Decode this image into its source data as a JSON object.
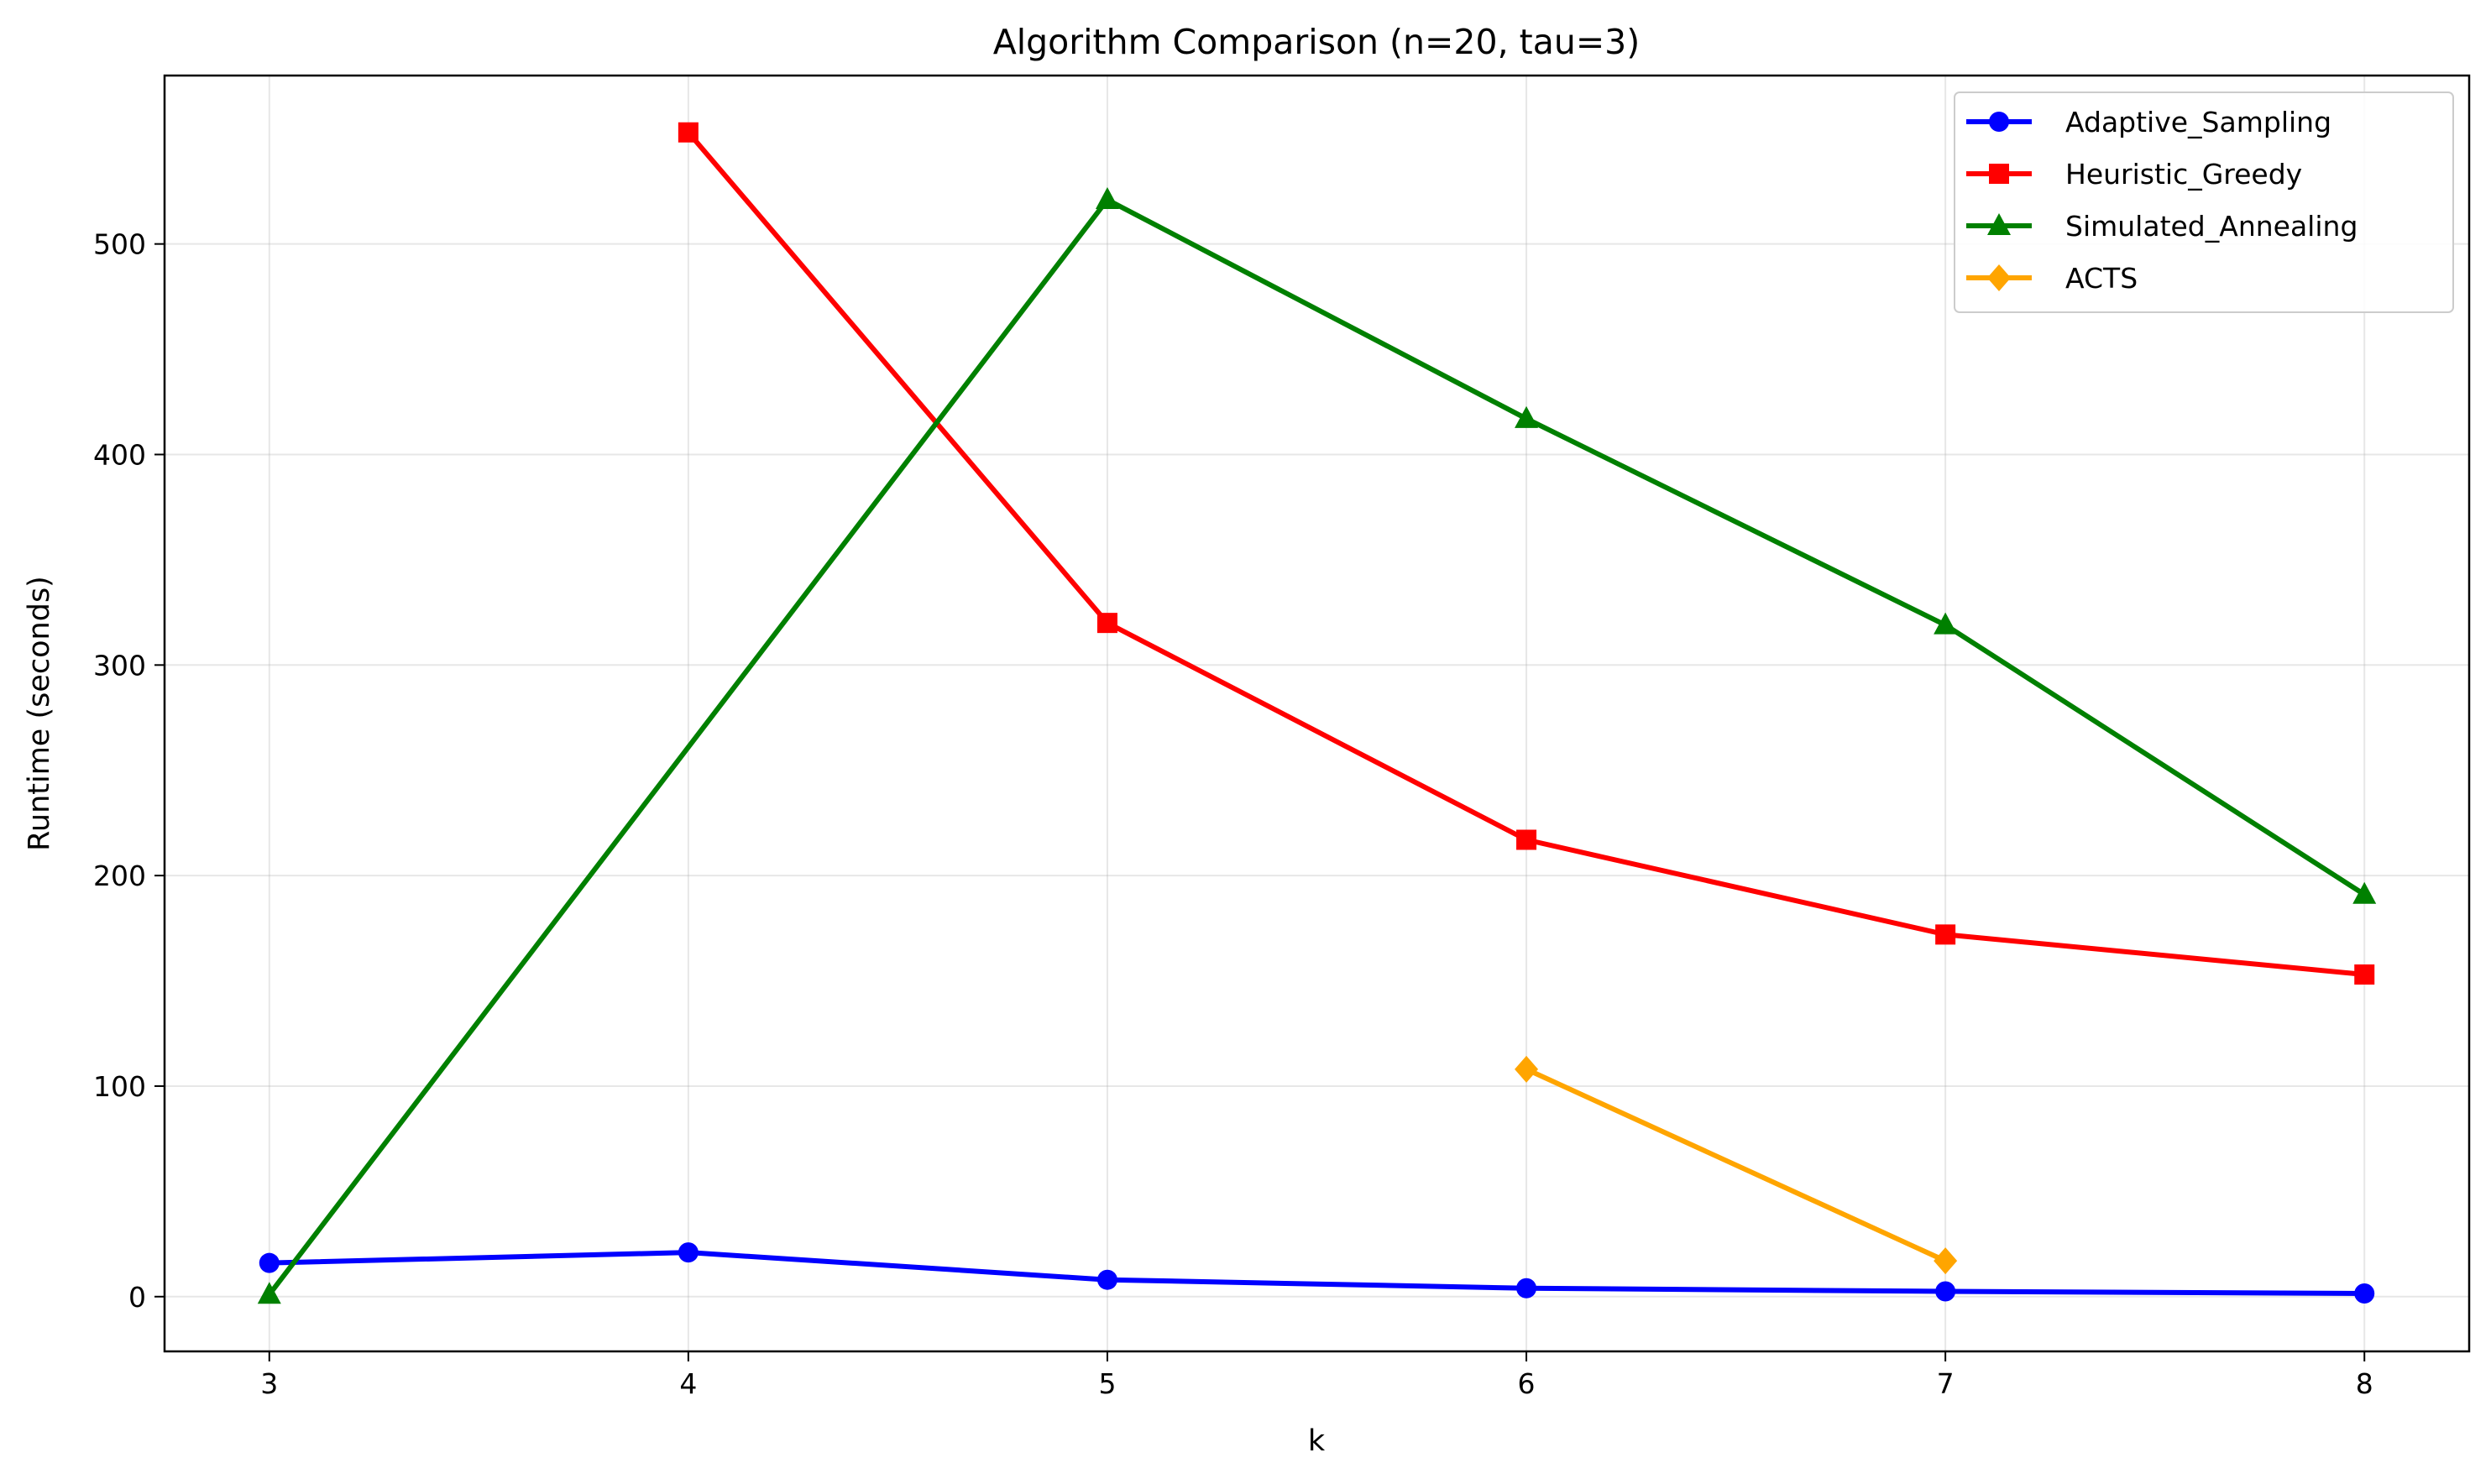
{
  "chart_data": {
    "type": "line",
    "title": "Algorithm Comparison (n=20, tau=3)",
    "xlabel": "k",
    "ylabel": "Runtime (seconds)",
    "x": [
      3,
      4,
      5,
      6,
      7,
      8
    ],
    "xlim": [
      2.75,
      8.25
    ],
    "ylim": [
      -26,
      580
    ],
    "xticks": [
      "3",
      "4",
      "5",
      "6",
      "7",
      "8"
    ],
    "yticks": [
      "0",
      "100",
      "200",
      "300",
      "400",
      "500"
    ],
    "grid": true,
    "legend_position": "top-right",
    "series": [
      {
        "name": "Adaptive_Sampling",
        "color": "#0000ff",
        "marker": "circle",
        "x": [
          3,
          4,
          5,
          6,
          7,
          8
        ],
        "values": [
          16,
          21,
          8,
          4,
          2.5,
          1.5
        ]
      },
      {
        "name": "Heuristic_Greedy",
        "color": "#ff0000",
        "marker": "square",
        "x": [
          4,
          5,
          6,
          7,
          8
        ],
        "values": [
          553,
          320,
          217,
          172,
          153
        ]
      },
      {
        "name": "Simulated_Annealing",
        "color": "#008000",
        "marker": "triangle",
        "x": [
          3,
          5,
          6,
          7,
          8
        ],
        "values": [
          1,
          521,
          417,
          319,
          191
        ]
      },
      {
        "name": "ACTS",
        "color": "#ffa500",
        "marker": "diamond",
        "x": [
          6,
          7
        ],
        "values": [
          108,
          17
        ]
      }
    ]
  }
}
